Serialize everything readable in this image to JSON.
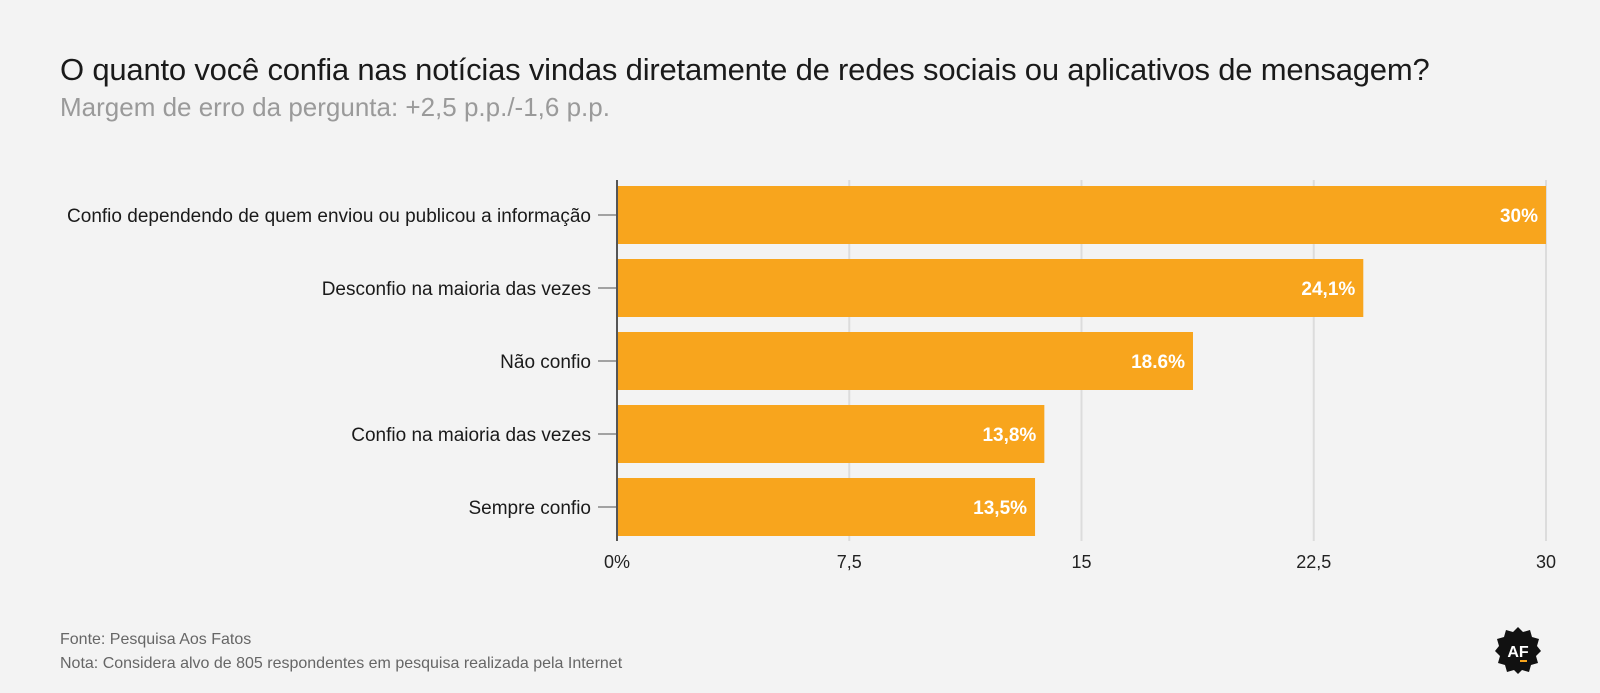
{
  "header": {
    "title": "O quanto você confia nas notícias vindas diretamente de redes sociais ou aplicativos de mensagem?",
    "subtitle": "Margem de erro da pergunta: +2,5 p.p./-1,6 p.p."
  },
  "chart_data": {
    "type": "bar",
    "orientation": "horizontal",
    "title": "O quanto você confia nas notícias vindas diretamente de redes sociais ou aplicativos de mensagem?",
    "subtitle": "Margem de erro da pergunta: +2,5 p.p./-1,6 p.p.",
    "categories": [
      "Confio dependendo de quem enviou ou publicou a informação",
      "Desconfio na maioria das vezes",
      "Não confio",
      "Confio na maioria das vezes",
      "Sempre confio"
    ],
    "values": [
      30,
      24.1,
      18.6,
      13.8,
      13.5
    ],
    "value_labels": [
      "30%",
      "24,1%",
      "18.6%",
      "13,8%",
      "13,5%"
    ],
    "xlim": [
      0,
      30
    ],
    "x_ticks": [
      0,
      7.5,
      15,
      22.5,
      30
    ],
    "x_tick_labels": [
      "0%",
      "7,5",
      "15",
      "22,5",
      "30"
    ],
    "grid": true,
    "bar_color": "#f8a51d"
  },
  "footer": {
    "source": "Fonte: Pesquisa Aos Fatos",
    "note": "Nota: Considera alvo de 805 respondentes em pesquisa realizada pela Internet"
  },
  "logo": {
    "text": "AF",
    "icon": "aos-fatos-logo-icon"
  }
}
